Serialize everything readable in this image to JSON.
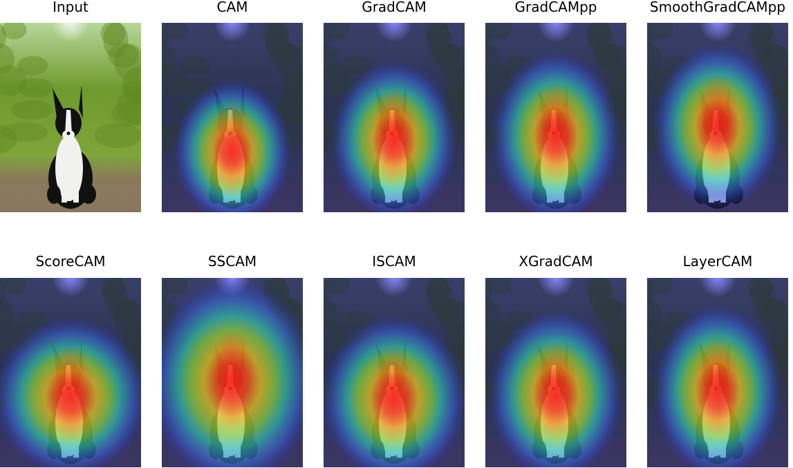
{
  "panels": [
    {
      "title": "Input",
      "kind": "input"
    },
    {
      "title": "CAM",
      "kind": "cam",
      "heat": {
        "cy": 0.68,
        "ry": 0.38,
        "rx": 0.42,
        "topShift": 0.0
      }
    },
    {
      "title": "GradCAM",
      "kind": "cam",
      "heat": {
        "cy": 0.62,
        "ry": 0.42,
        "rx": 0.45,
        "topShift": 0.0
      }
    },
    {
      "title": "GradCAMpp",
      "kind": "cam",
      "heat": {
        "cy": 0.6,
        "ry": 0.45,
        "rx": 0.46,
        "topShift": 0.0
      }
    },
    {
      "title": "SmoothGradCAMpp",
      "kind": "cam",
      "heat": {
        "cy": 0.55,
        "ry": 0.44,
        "rx": 0.46,
        "topShift": 0.0
      }
    },
    {
      "title": "ScoreCAM",
      "kind": "cam",
      "heat": {
        "cy": 0.63,
        "ry": 0.42,
        "rx": 0.55,
        "topShift": 0.0
      }
    },
    {
      "title": "SSCAM",
      "kind": "cam",
      "heat": {
        "cy": 0.55,
        "ry": 0.55,
        "rx": 0.6,
        "topShift": 0.0
      }
    },
    {
      "title": "ISCAM",
      "kind": "cam",
      "heat": {
        "cy": 0.64,
        "ry": 0.44,
        "rx": 0.52,
        "topShift": 0.0
      }
    },
    {
      "title": "XGradCAM",
      "kind": "cam",
      "heat": {
        "cy": 0.62,
        "ry": 0.45,
        "rx": 0.48,
        "topShift": 0.0
      }
    },
    {
      "title": "LayerCAM",
      "kind": "cam",
      "heat": {
        "cy": 0.6,
        "ry": 0.46,
        "rx": 0.46,
        "topShift": 0.0
      }
    }
  ]
}
